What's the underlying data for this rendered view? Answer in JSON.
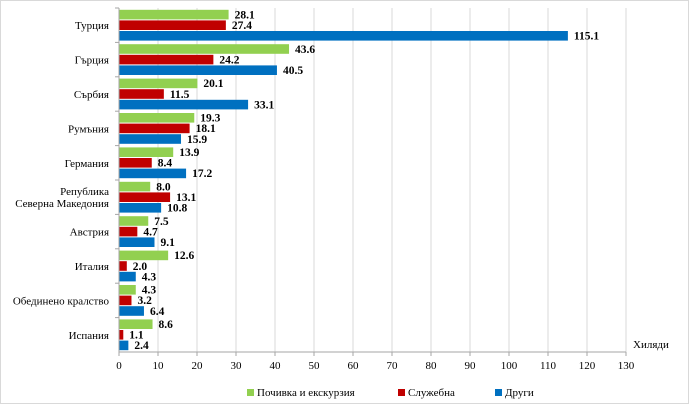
{
  "chart_data": {
    "type": "bar",
    "orientation": "horizontal",
    "title": "",
    "xlabel": "Хиляди",
    "ylabel": "",
    "xlim": [
      0,
      130
    ],
    "xticks": [
      0,
      10,
      20,
      30,
      40,
      50,
      60,
      70,
      80,
      90,
      100,
      110,
      120,
      130
    ],
    "grid": true,
    "legend_position": "bottom",
    "categories": [
      [
        "Турция"
      ],
      [
        "Гърция"
      ],
      [
        "Сърбия"
      ],
      [
        "Румъния"
      ],
      [
        "Германия"
      ],
      [
        "Република",
        "Северна Македония"
      ],
      [
        "Австрия"
      ],
      [
        "Италия"
      ],
      [
        "Обединено кралство"
      ],
      [
        "Испания"
      ]
    ],
    "series": [
      {
        "name": "Почивка и екскурзия",
        "color": "#92d050",
        "values": [
          28.1,
          43.6,
          20.1,
          19.3,
          13.9,
          8.0,
          7.5,
          12.6,
          4.3,
          8.6
        ]
      },
      {
        "name": "Служебна",
        "color": "#c00000",
        "values": [
          27.4,
          24.2,
          11.5,
          18.1,
          8.4,
          13.1,
          4.7,
          2.0,
          3.2,
          1.1
        ]
      },
      {
        "name": "Други",
        "color": "#0070c0",
        "values": [
          115.1,
          40.5,
          33.1,
          15.9,
          17.2,
          10.8,
          9.1,
          4.3,
          6.4,
          2.4
        ]
      }
    ]
  }
}
